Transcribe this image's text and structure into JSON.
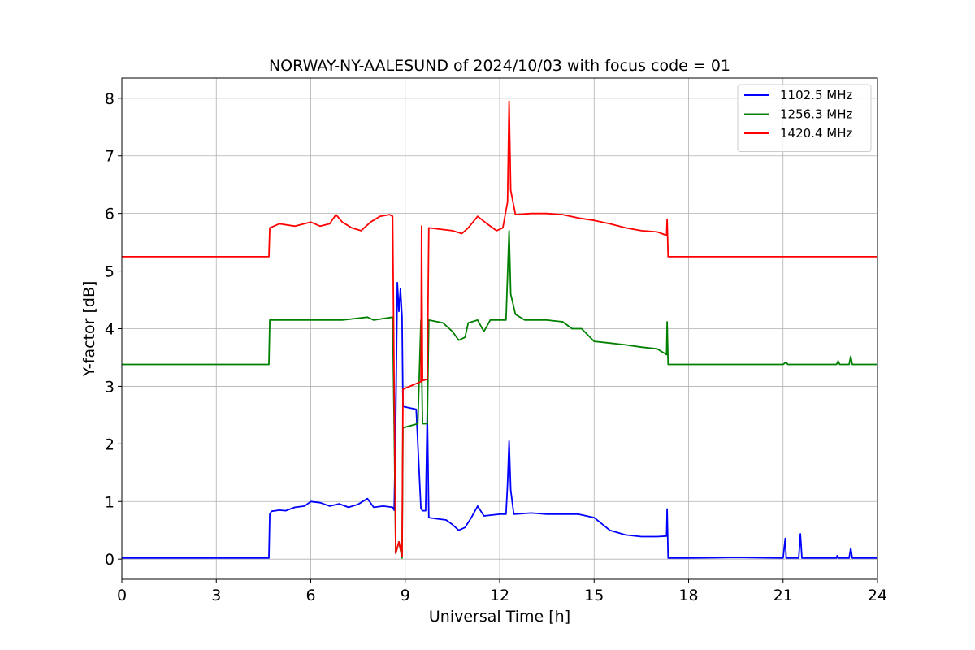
{
  "chart_data": {
    "type": "line",
    "title": "NORWAY-NY-AALESUND of 2024/10/03 with focus code = 01",
    "xlabel": "Universal Time [h]",
    "ylabel": "Y-factor [dB]",
    "xlim": [
      0,
      24
    ],
    "ylim": [
      -0.35,
      8.35
    ],
    "xticks": [
      0,
      3,
      6,
      9,
      12,
      15,
      18,
      21,
      24
    ],
    "xtick_labels": [
      "0",
      "3",
      "6",
      "9",
      "12",
      "15",
      "18",
      "21",
      "24"
    ],
    "yticks": [
      0,
      1,
      2,
      3,
      4,
      5,
      6,
      7,
      8
    ],
    "ytick_labels": [
      "0",
      "1",
      "2",
      "3",
      "4",
      "5",
      "6",
      "7",
      "8"
    ],
    "grid": true,
    "legend_position": "top-right",
    "series": [
      {
        "name": "1102.5 MHz",
        "color": "#0000ff",
        "points": [
          [
            0,
            0.02
          ],
          [
            4.67,
            0.02
          ],
          [
            4.7,
            0.78
          ],
          [
            4.75,
            0.83
          ],
          [
            5.0,
            0.85
          ],
          [
            5.2,
            0.84
          ],
          [
            5.5,
            0.9
          ],
          [
            5.8,
            0.92
          ],
          [
            6.0,
            1.0
          ],
          [
            6.3,
            0.98
          ],
          [
            6.6,
            0.92
          ],
          [
            6.9,
            0.96
          ],
          [
            7.2,
            0.9
          ],
          [
            7.5,
            0.95
          ],
          [
            7.8,
            1.05
          ],
          [
            8.0,
            0.9
          ],
          [
            8.3,
            0.92
          ],
          [
            8.6,
            0.9
          ],
          [
            8.65,
            0.85
          ],
          [
            8.7,
            2.42
          ],
          [
            8.75,
            4.8
          ],
          [
            8.8,
            4.3
          ],
          [
            8.85,
            4.7
          ],
          [
            8.9,
            4.2
          ],
          [
            8.93,
            2.65
          ],
          [
            9.35,
            2.6
          ],
          [
            9.5,
            0.88
          ],
          [
            9.55,
            0.84
          ],
          [
            9.65,
            0.84
          ],
          [
            9.7,
            2.58
          ],
          [
            9.75,
            0.72
          ],
          [
            10.0,
            0.7
          ],
          [
            10.3,
            0.68
          ],
          [
            10.5,
            0.6
          ],
          [
            10.7,
            0.5
          ],
          [
            10.9,
            0.55
          ],
          [
            11.1,
            0.72
          ],
          [
            11.3,
            0.92
          ],
          [
            11.5,
            0.75
          ],
          [
            12.0,
            0.78
          ],
          [
            12.2,
            0.78
          ],
          [
            12.25,
            1.3
          ],
          [
            12.3,
            2.05
          ],
          [
            12.35,
            1.2
          ],
          [
            12.45,
            0.78
          ],
          [
            13.0,
            0.8
          ],
          [
            13.5,
            0.78
          ],
          [
            14.0,
            0.78
          ],
          [
            14.5,
            0.78
          ],
          [
            15.0,
            0.72
          ],
          [
            15.5,
            0.5
          ],
          [
            16.0,
            0.42
          ],
          [
            16.5,
            0.39
          ],
          [
            17.0,
            0.39
          ],
          [
            17.3,
            0.4
          ],
          [
            17.32,
            0.87
          ],
          [
            17.35,
            0.02
          ],
          [
            18.0,
            0.02
          ],
          [
            19.5,
            0.03
          ],
          [
            21.0,
            0.02
          ],
          [
            21.07,
            0.36
          ],
          [
            21.1,
            0.02
          ],
          [
            21.5,
            0.02
          ],
          [
            21.55,
            0.44
          ],
          [
            21.6,
            0.02
          ],
          [
            22.7,
            0.02
          ],
          [
            22.72,
            0.06
          ],
          [
            22.75,
            0.02
          ],
          [
            23.1,
            0.02
          ],
          [
            23.15,
            0.19
          ],
          [
            23.2,
            0.02
          ],
          [
            24,
            0.02
          ]
        ]
      },
      {
        "name": "1256.3 MHz",
        "color": "#008000",
        "points": [
          [
            0,
            3.38
          ],
          [
            4.67,
            3.38
          ],
          [
            4.7,
            4.15
          ],
          [
            6.0,
            4.15
          ],
          [
            7.0,
            4.15
          ],
          [
            7.8,
            4.2
          ],
          [
            8.0,
            4.15
          ],
          [
            8.6,
            4.2
          ],
          [
            8.65,
            2.28
          ],
          [
            8.7,
            0.1
          ],
          [
            8.8,
            0.3
          ],
          [
            8.9,
            0.02
          ],
          [
            8.93,
            2.28
          ],
          [
            9.4,
            2.35
          ],
          [
            9.5,
            4.15
          ],
          [
            9.55,
            2.35
          ],
          [
            9.7,
            2.35
          ],
          [
            9.75,
            4.15
          ],
          [
            10.2,
            4.1
          ],
          [
            10.5,
            3.95
          ],
          [
            10.7,
            3.8
          ],
          [
            10.9,
            3.85
          ],
          [
            11.0,
            4.1
          ],
          [
            11.3,
            4.15
          ],
          [
            11.5,
            3.95
          ],
          [
            11.7,
            4.15
          ],
          [
            12.0,
            4.15
          ],
          [
            12.2,
            4.15
          ],
          [
            12.3,
            5.7
          ],
          [
            12.35,
            4.6
          ],
          [
            12.5,
            4.25
          ],
          [
            12.8,
            4.15
          ],
          [
            13.5,
            4.15
          ],
          [
            14.0,
            4.12
          ],
          [
            14.3,
            4.0
          ],
          [
            14.6,
            4.0
          ],
          [
            15.0,
            3.78
          ],
          [
            15.5,
            3.75
          ],
          [
            16.0,
            3.72
          ],
          [
            16.5,
            3.68
          ],
          [
            17.0,
            3.65
          ],
          [
            17.3,
            3.55
          ],
          [
            17.32,
            4.12
          ],
          [
            17.35,
            3.38
          ],
          [
            18.0,
            3.38
          ],
          [
            21.0,
            3.38
          ],
          [
            21.1,
            3.42
          ],
          [
            21.15,
            3.38
          ],
          [
            22.7,
            3.38
          ],
          [
            22.75,
            3.44
          ],
          [
            22.8,
            3.38
          ],
          [
            23.1,
            3.38
          ],
          [
            23.15,
            3.52
          ],
          [
            23.2,
            3.38
          ],
          [
            24,
            3.38
          ]
        ]
      },
      {
        "name": "1420.4 MHz",
        "color": "#ff0000",
        "points": [
          [
            0,
            5.25
          ],
          [
            4.67,
            5.25
          ],
          [
            4.7,
            5.75
          ],
          [
            5.0,
            5.82
          ],
          [
            5.5,
            5.78
          ],
          [
            6.0,
            5.85
          ],
          [
            6.3,
            5.78
          ],
          [
            6.6,
            5.82
          ],
          [
            6.8,
            5.98
          ],
          [
            7.0,
            5.85
          ],
          [
            7.3,
            5.75
          ],
          [
            7.6,
            5.7
          ],
          [
            7.9,
            5.85
          ],
          [
            8.2,
            5.95
          ],
          [
            8.5,
            5.98
          ],
          [
            8.6,
            5.95
          ],
          [
            8.65,
            2.95
          ],
          [
            8.7,
            0.1
          ],
          [
            8.8,
            0.3
          ],
          [
            8.9,
            0.05
          ],
          [
            8.93,
            2.95
          ],
          [
            9.5,
            3.08
          ],
          [
            9.52,
            5.78
          ],
          [
            9.55,
            3.1
          ],
          [
            9.7,
            3.12
          ],
          [
            9.75,
            5.75
          ],
          [
            10.2,
            5.72
          ],
          [
            10.5,
            5.7
          ],
          [
            10.8,
            5.65
          ],
          [
            11.0,
            5.75
          ],
          [
            11.3,
            5.95
          ],
          [
            11.6,
            5.82
          ],
          [
            11.9,
            5.7
          ],
          [
            12.1,
            5.75
          ],
          [
            12.25,
            6.2
          ],
          [
            12.3,
            7.95
          ],
          [
            12.35,
            6.4
          ],
          [
            12.5,
            5.98
          ],
          [
            13.0,
            6.0
          ],
          [
            13.5,
            6.0
          ],
          [
            14.0,
            5.98
          ],
          [
            14.5,
            5.92
          ],
          [
            15.0,
            5.88
          ],
          [
            15.5,
            5.82
          ],
          [
            16.0,
            5.75
          ],
          [
            16.5,
            5.7
          ],
          [
            17.0,
            5.68
          ],
          [
            17.3,
            5.62
          ],
          [
            17.32,
            5.9
          ],
          [
            17.35,
            5.25
          ],
          [
            24,
            5.25
          ]
        ]
      }
    ]
  }
}
